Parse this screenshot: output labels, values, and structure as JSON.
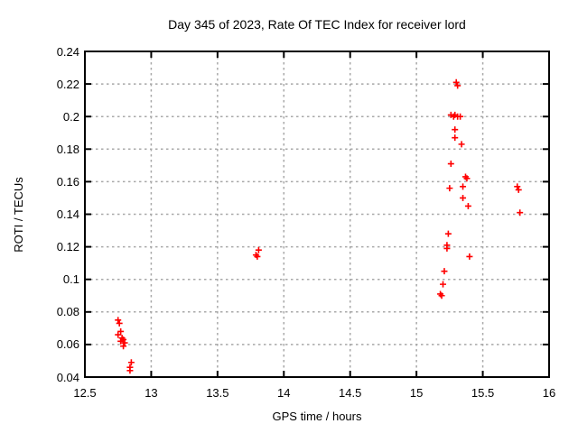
{
  "chart_data": {
    "type": "scatter",
    "title": "Day 345 of 2023, Rate Of TEC Index for receiver lord",
    "xlabel": "GPS time / hours",
    "ylabel": "ROTI / TECUs",
    "xlim": [
      12.5,
      16
    ],
    "ylim": [
      0.04,
      0.24
    ],
    "xticks": [
      12.5,
      13,
      13.5,
      14,
      14.5,
      15,
      15.5,
      16
    ],
    "xtick_labels": [
      "12.5",
      "13",
      "13.5",
      "14",
      "14.5",
      "15",
      "15.5",
      "16"
    ],
    "yticks": [
      0.04,
      0.06,
      0.08,
      0.1,
      0.12,
      0.14,
      0.16,
      0.18,
      0.2,
      0.22,
      0.24
    ],
    "ytick_labels": [
      "0.04",
      "0.06",
      "0.08",
      "0.1",
      "0.12",
      "0.14",
      "0.16",
      "0.18",
      "0.2",
      "0.22",
      "0.24"
    ],
    "grid": true,
    "legend": "none",
    "marker": {
      "shape": "plus",
      "color": "#ff0000",
      "size": 7
    },
    "grid_color": "#a8a8a8",
    "axis_color": "#000000",
    "background_color": "#ffffff",
    "series": [
      {
        "name": "ROTI",
        "points": [
          [
            12.75,
            0.075
          ],
          [
            12.76,
            0.073
          ],
          [
            12.77,
            0.068
          ],
          [
            12.75,
            0.066
          ],
          [
            12.78,
            0.064
          ],
          [
            12.79,
            0.063
          ],
          [
            12.77,
            0.062
          ],
          [
            12.8,
            0.061
          ],
          [
            12.79,
            0.059
          ],
          [
            12.85,
            0.049
          ],
          [
            12.84,
            0.046
          ],
          [
            12.84,
            0.044
          ],
          [
            13.81,
            0.118
          ],
          [
            13.79,
            0.115
          ],
          [
            13.8,
            0.114
          ],
          [
            15.18,
            0.091
          ],
          [
            15.19,
            0.09
          ],
          [
            15.2,
            0.097
          ],
          [
            15.21,
            0.105
          ],
          [
            15.23,
            0.121
          ],
          [
            15.23,
            0.119
          ],
          [
            15.24,
            0.128
          ],
          [
            15.25,
            0.156
          ],
          [
            15.26,
            0.171
          ],
          [
            15.26,
            0.201
          ],
          [
            15.28,
            0.2
          ],
          [
            15.29,
            0.201
          ],
          [
            15.31,
            0.2
          ],
          [
            15.33,
            0.2
          ],
          [
            15.3,
            0.221
          ],
          [
            15.31,
            0.219
          ],
          [
            15.29,
            0.192
          ],
          [
            15.29,
            0.187
          ],
          [
            15.34,
            0.183
          ],
          [
            15.35,
            0.157
          ],
          [
            15.35,
            0.15
          ],
          [
            15.37,
            0.163
          ],
          [
            15.38,
            0.162
          ],
          [
            15.39,
            0.145
          ],
          [
            15.4,
            0.114
          ],
          [
            15.76,
            0.157
          ],
          [
            15.77,
            0.155
          ],
          [
            15.78,
            0.141
          ]
        ]
      }
    ]
  }
}
